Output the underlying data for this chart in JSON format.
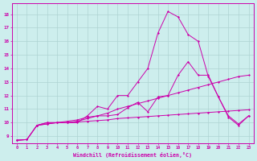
{
  "xlabel": "Windchill (Refroidissement éolien,°C)",
  "x_ticks": [
    0,
    1,
    2,
    3,
    4,
    5,
    6,
    7,
    8,
    9,
    10,
    11,
    12,
    13,
    14,
    15,
    16,
    17,
    18,
    19,
    20,
    21,
    22,
    23
  ],
  "ylim": [
    8.5,
    18.8
  ],
  "xlim": [
    -0.5,
    23.5
  ],
  "yticks": [
    9,
    10,
    11,
    12,
    13,
    14,
    15,
    16,
    17,
    18
  ],
  "bg_color": "#cdeeed",
  "grid_color": "#aed4d2",
  "line_color": "#cc00aa",
  "line1": {
    "x": [
      0,
      1,
      2,
      3,
      4,
      5,
      6,
      7,
      8,
      9,
      10,
      11,
      12,
      13,
      14,
      15,
      16,
      17,
      18,
      19,
      20,
      21,
      22,
      23
    ],
    "y": [
      8.7,
      8.75,
      9.8,
      9.9,
      10.0,
      10.0,
      10.05,
      10.1,
      10.15,
      10.2,
      10.3,
      10.35,
      10.4,
      10.45,
      10.5,
      10.55,
      10.6,
      10.65,
      10.7,
      10.75,
      10.8,
      10.85,
      10.9,
      10.95
    ]
  },
  "line2": {
    "x": [
      0,
      1,
      2,
      3,
      4,
      5,
      6,
      7,
      8,
      9,
      10,
      11,
      12,
      13,
      14,
      15,
      16,
      17,
      18,
      19,
      20,
      21,
      22,
      23
    ],
    "y": [
      8.7,
      8.75,
      9.8,
      9.9,
      10.0,
      10.0,
      10.1,
      10.3,
      10.5,
      10.7,
      11.0,
      11.2,
      11.4,
      11.6,
      11.8,
      12.0,
      12.2,
      12.4,
      12.6,
      12.8,
      13.0,
      13.2,
      13.4,
      13.5
    ]
  },
  "line3": {
    "x": [
      2,
      3,
      4,
      5,
      6,
      7,
      8,
      9,
      10,
      11,
      12,
      13,
      14,
      15,
      16,
      17,
      18,
      19,
      20,
      21,
      22,
      23
    ],
    "y": [
      9.8,
      10.0,
      10.0,
      10.1,
      10.2,
      10.4,
      10.5,
      10.5,
      10.6,
      11.1,
      11.5,
      10.8,
      11.9,
      12.0,
      13.5,
      14.5,
      13.5,
      13.5,
      11.9,
      10.5,
      9.9,
      10.5
    ]
  },
  "line4": {
    "x": [
      0,
      1,
      2,
      3,
      4,
      5,
      6,
      7,
      8,
      9,
      10,
      11,
      12,
      13,
      14,
      15,
      16,
      17,
      18,
      19,
      20,
      21,
      22,
      23
    ],
    "y": [
      8.7,
      8.75,
      9.8,
      10.0,
      10.0,
      10.0,
      10.0,
      10.5,
      11.2,
      11.0,
      12.0,
      12.0,
      13.0,
      14.0,
      16.6,
      18.2,
      17.8,
      16.5,
      16.0,
      13.4,
      11.9,
      10.4,
      9.8,
      10.5
    ]
  }
}
